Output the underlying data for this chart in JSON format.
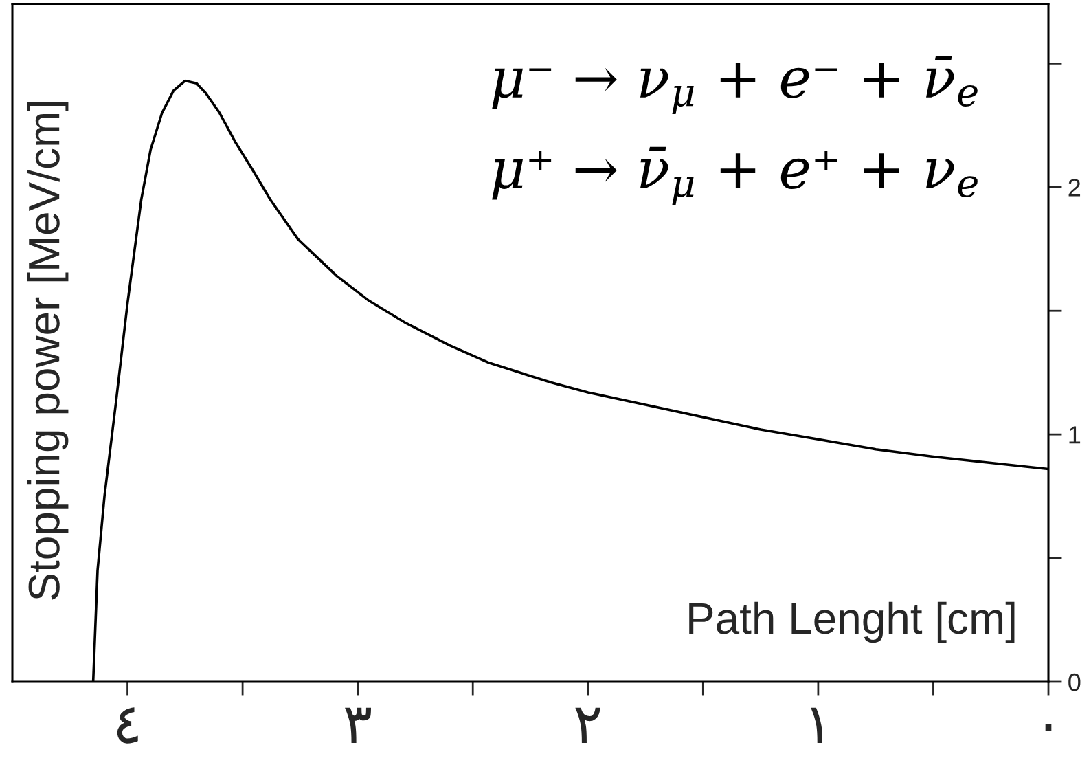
{
  "chart_data": {
    "type": "line",
    "xlabel": "Path Lenght [cm]",
    "ylabel": "Stopping power [MeV/cm]",
    "annotations": [
      "μ⁻ → ν$_{μ}$ + e⁻ + ν̄$_{e}$",
      "μ⁺ → ν̄$_{μ}$ + e⁺ + ν$_{e}$"
    ],
    "x": [
      4.149,
      4.13,
      4.1,
      4.05,
      4.0,
      3.94,
      3.9,
      3.85,
      3.8,
      3.75,
      3.7,
      3.66,
      3.6,
      3.53,
      3.45,
      3.38,
      3.26,
      3.09,
      2.95,
      2.79,
      2.6,
      2.43,
      2.16,
      2.0,
      1.75,
      1.5,
      1.25,
      1.0,
      0.75,
      0.5,
      0.25,
      0.0
    ],
    "series": [
      {
        "color": "#000000",
        "values": [
          0.0,
          0.45,
          0.75,
          1.13,
          1.53,
          1.95,
          2.15,
          2.3,
          2.39,
          2.43,
          2.42,
          2.38,
          2.3,
          2.18,
          2.06,
          1.95,
          1.79,
          1.64,
          1.54,
          1.45,
          1.36,
          1.29,
          1.21,
          1.17,
          1.12,
          1.07,
          1.02,
          0.98,
          0.94,
          0.91,
          0.885,
          0.86
        ]
      }
    ],
    "xlim": [
      4.5,
      0
    ],
    "xticks": [
      {
        "value": 4,
        "label": "٤"
      },
      {
        "value": 3.5,
        "label": null
      },
      {
        "value": 3,
        "label": "٣"
      },
      {
        "value": 2.5,
        "label": null
      },
      {
        "value": 2,
        "label": "٢"
      },
      {
        "value": 1.5,
        "label": null
      },
      {
        "value": 1,
        "label": "١"
      },
      {
        "value": 0.5,
        "label": null
      },
      {
        "value": 0,
        "label": "٠"
      }
    ],
    "ylim": [
      0,
      2.74
    ],
    "yticks": [
      0,
      {
        "value": 0.5,
        "label": null
      },
      1,
      {
        "value": 1.5,
        "label": null
      },
      2,
      {
        "value": 2.5,
        "label": null
      }
    ],
    "marker": "none",
    "line_style": "solid"
  }
}
